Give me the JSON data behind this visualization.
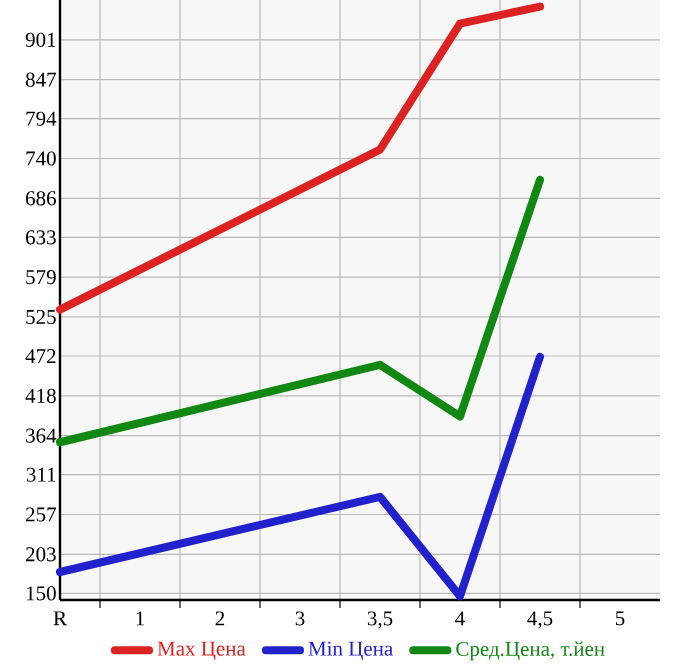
{
  "chart_data": {
    "type": "line",
    "categories": [
      "R",
      "1",
      "2",
      "3",
      "3,5",
      "4",
      "4,5",
      "5"
    ],
    "series": [
      {
        "name": "Max Цена",
        "color": "#dd2222",
        "values": [
          535,
          null,
          null,
          null,
          752,
          923,
          946,
          null
        ]
      },
      {
        "name": "Min Цена",
        "color": "#2222cc",
        "values": [
          179,
          null,
          null,
          null,
          281,
          146,
          471,
          null
        ]
      },
      {
        "name": "Сред.Цена, т.йен",
        "color": "#118811",
        "values": [
          355,
          null,
          null,
          null,
          460,
          390,
          711,
          null
        ]
      }
    ],
    "ylim": [
      141,
      955
    ],
    "yticks": [
      150,
      203,
      257,
      311,
      364,
      418,
      472,
      525,
      579,
      633,
      686,
      740,
      794,
      847,
      901
    ],
    "grid": true,
    "legend": "bottom",
    "marker": "none",
    "line_style": "solid"
  }
}
